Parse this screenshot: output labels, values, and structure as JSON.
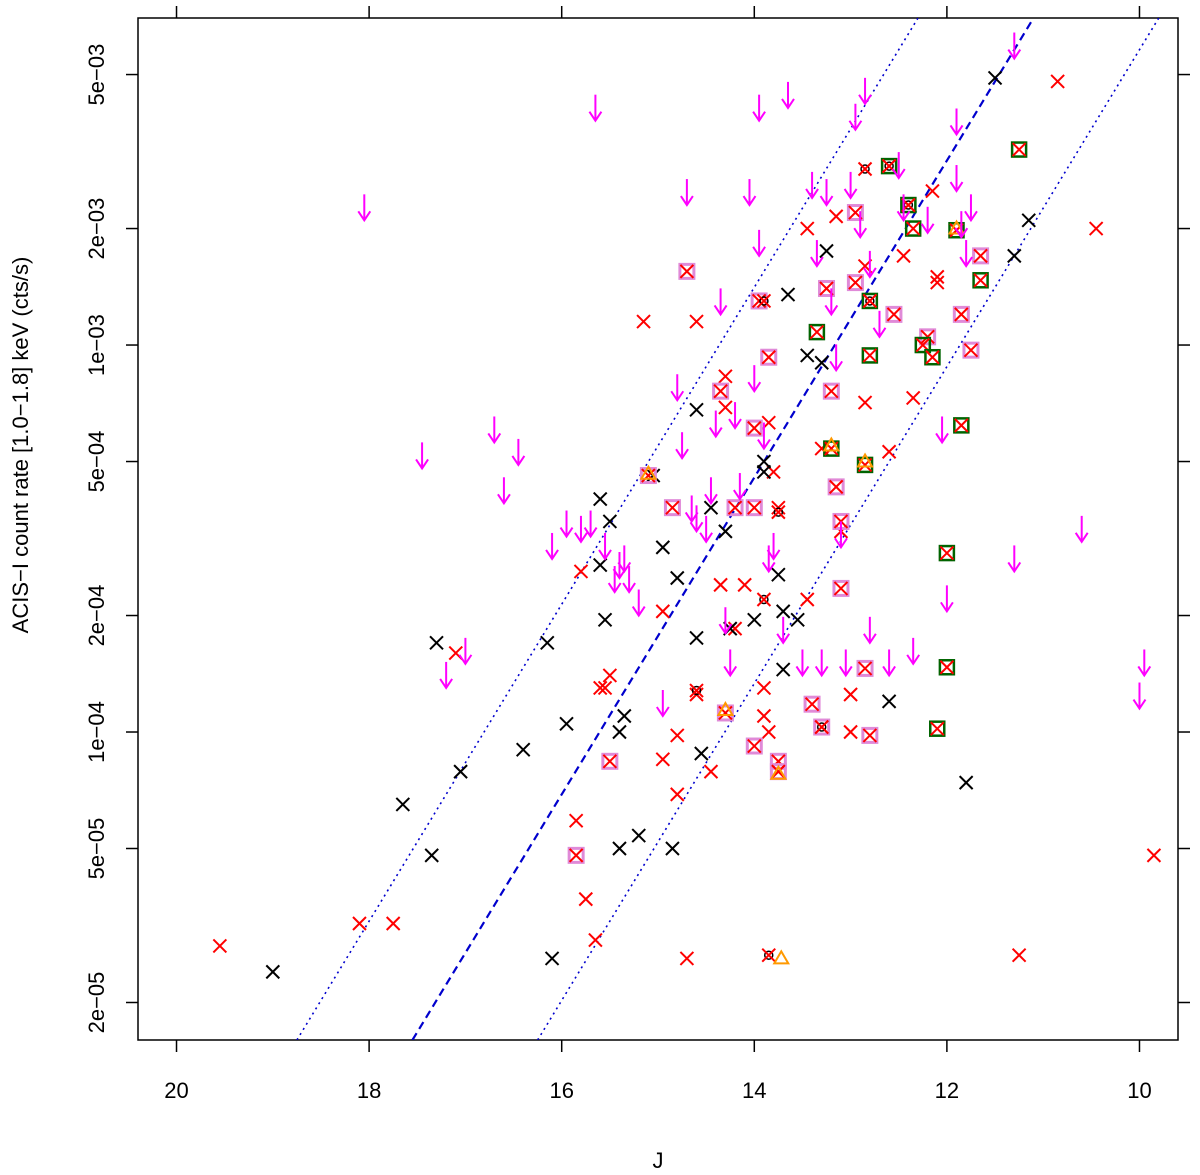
{
  "chart_data": {
    "type": "scatter",
    "title": "",
    "xlabel": "J",
    "ylabel": "ACIS−I count rate [1.0−1.8] keV (cts/s)",
    "x_reversed": true,
    "y_scale": "log",
    "xlim": [
      20.4,
      9.6
    ],
    "ylim": [
      1.6e-05,
      0.007
    ],
    "x_ticks": [
      20,
      18,
      16,
      14,
      12,
      10
    ],
    "x_tick_labels": [
      "20",
      "18",
      "16",
      "14",
      "12",
      "10"
    ],
    "y_ticks": [
      2e-05,
      5e-05,
      0.0001,
      0.0002,
      0.0005,
      0.001,
      0.002,
      0.005
    ],
    "y_tick_labels": [
      "2e−05",
      "5e−05",
      "1e−04",
      "2e−04",
      "5e−04",
      "1e−03",
      "2e−03",
      "5e−03"
    ],
    "grid": false,
    "colors": {
      "red": "#ff0000",
      "black": "#000000",
      "magenta": "#ff00ff",
      "pink_box": "#e08ad8",
      "green_box": "#006400",
      "orange": "#ff9900",
      "blue_line": "#0000cd"
    },
    "reference_lines": [
      {
        "style": "dashed",
        "x": [
          17.55,
          11.1
        ],
        "y": [
          1.6e-05,
          0.007
        ]
      },
      {
        "style": "dotted",
        "x": [
          18.75,
          12.3
        ],
        "y": [
          1.6e-05,
          0.007
        ]
      },
      {
        "style": "dotted",
        "x": [
          16.25,
          9.8
        ],
        "y": [
          1.6e-05,
          0.007
        ]
      }
    ],
    "series": [
      {
        "marker": "x",
        "color": "red",
        "points": [
          [
            19.55,
            2.8e-05
          ],
          [
            18.1,
            3.2e-05
          ],
          [
            17.75,
            3.2e-05
          ],
          [
            17.1,
            0.00016
          ],
          [
            15.8,
            0.00026
          ],
          [
            15.6,
            0.00013
          ],
          [
            15.5,
            0.00014
          ],
          [
            15.15,
            0.00115
          ],
          [
            14.95,
            0.000205
          ],
          [
            14.95,
            8.5e-05
          ],
          [
            14.8,
            9.8e-05
          ],
          [
            14.8,
            6.9e-05
          ],
          [
            14.7,
            2.6e-05
          ],
          [
            14.6,
            0.00115
          ],
          [
            14.6,
            0.000125
          ],
          [
            14.45,
            7.9e-05
          ],
          [
            14.3,
            0.00083
          ],
          [
            14.3,
            0.00069
          ],
          [
            14.35,
            0.00024
          ],
          [
            14.2,
            0.000185
          ],
          [
            14.1,
            0.00024
          ],
          [
            13.9,
            0.00013
          ],
          [
            13.9,
            0.00011
          ],
          [
            13.85,
            0.0001
          ],
          [
            13.85,
            0.00063
          ],
          [
            13.75,
            0.00038
          ],
          [
            13.8,
            0.00047
          ],
          [
            13.45,
            0.002
          ],
          [
            13.45,
            0.00022
          ],
          [
            13.3,
            0.00054
          ],
          [
            13.15,
            0.00215
          ],
          [
            13.1,
            0.00033
          ],
          [
            13.0,
            0.000125
          ],
          [
            13.0,
            0.0001
          ],
          [
            12.85,
            0.0016
          ],
          [
            12.85,
            0.00071
          ],
          [
            12.6,
            0.00053
          ],
          [
            12.45,
            0.0017
          ],
          [
            12.35,
            0.00073
          ],
          [
            12.15,
            0.0025
          ],
          [
            12.1,
            0.0015
          ],
          [
            12.1,
            0.00145
          ],
          [
            11.25,
            2.65e-05
          ],
          [
            10.85,
            0.0048
          ],
          [
            10.45,
            0.002
          ],
          [
            9.85,
            4.8e-05
          ],
          [
            15.85,
            5.9e-05
          ],
          [
            15.75,
            3.7e-05
          ],
          [
            15.65,
            2.9e-05
          ],
          [
            15.55,
            0.00013
          ]
        ]
      },
      {
        "marker": "x",
        "color": "black",
        "points": [
          [
            19.0,
            2.4e-05
          ],
          [
            17.65,
            6.5e-05
          ],
          [
            17.35,
            4.8e-05
          ],
          [
            17.3,
            0.00017
          ],
          [
            17.05,
            7.9e-05
          ],
          [
            16.4,
            9e-05
          ],
          [
            16.15,
            0.00017
          ],
          [
            16.1,
            2.6e-05
          ],
          [
            15.95,
            0.000105
          ],
          [
            15.6,
            0.0004
          ],
          [
            15.6,
            0.00027
          ],
          [
            15.55,
            0.000195
          ],
          [
            15.5,
            0.00035
          ],
          [
            15.4,
            5e-05
          ],
          [
            15.4,
            0.0001
          ],
          [
            15.35,
            0.00011
          ],
          [
            15.2,
            5.4e-05
          ],
          [
            15.05,
            0.00046
          ],
          [
            14.95,
            0.0003
          ],
          [
            14.85,
            5e-05
          ],
          [
            14.8,
            0.00025
          ],
          [
            14.6,
            0.00068
          ],
          [
            14.6,
            0.000175
          ],
          [
            14.55,
            8.8e-05
          ],
          [
            14.45,
            0.00038
          ],
          [
            14.3,
            0.00033
          ],
          [
            14.25,
            0.000185
          ],
          [
            14.0,
            0.000195
          ],
          [
            13.9,
            0.0005
          ],
          [
            13.9,
            0.00047
          ],
          [
            13.75,
            0.000255
          ],
          [
            13.7,
            0.000205
          ],
          [
            13.7,
            0.000145
          ],
          [
            13.65,
            0.00135
          ],
          [
            13.55,
            0.000195
          ],
          [
            13.45,
            0.00094
          ],
          [
            13.3,
            0.0009
          ],
          [
            13.25,
            0.00175
          ],
          [
            12.6,
            0.00012
          ],
          [
            11.8,
            7.4e-05
          ],
          [
            11.3,
            0.0017
          ],
          [
            11.5,
            0.0049
          ],
          [
            11.15,
            0.0021
          ]
        ]
      },
      {
        "marker": "x-pink-box",
        "color": "red",
        "points": [
          [
            15.85,
            4.8e-05
          ],
          [
            15.1,
            0.00046
          ],
          [
            14.85,
            0.00038
          ],
          [
            14.7,
            0.00155
          ],
          [
            14.35,
            0.00076
          ],
          [
            14.3,
            0.000112
          ],
          [
            14.2,
            0.00038
          ],
          [
            14.0,
            0.00061
          ],
          [
            14.0,
            0.00038
          ],
          [
            14.0,
            9.2e-05
          ],
          [
            13.95,
            0.0013
          ],
          [
            13.85,
            0.00093
          ],
          [
            13.75,
            8.4e-05
          ],
          [
            13.75,
            7.9e-05
          ],
          [
            13.4,
            0.000118
          ],
          [
            13.3,
            0.000103
          ],
          [
            13.25,
            0.0014
          ],
          [
            13.2,
            0.00076
          ],
          [
            13.15,
            0.00043
          ],
          [
            13.1,
            0.000235
          ],
          [
            12.95,
            0.0022
          ],
          [
            12.95,
            0.00145
          ],
          [
            12.85,
            0.000146
          ],
          [
            12.8,
            9.8e-05
          ],
          [
            12.55,
            0.0012
          ],
          [
            12.2,
            0.00105
          ],
          [
            11.85,
            0.0012
          ],
          [
            11.75,
            0.00097
          ],
          [
            11.65,
            0.0017
          ],
          [
            15.5,
            8.4e-05
          ],
          [
            13.1,
            0.00035
          ]
        ]
      },
      {
        "marker": "x-green-box",
        "color": "red",
        "points": [
          [
            13.35,
            0.00108
          ],
          [
            13.2,
            0.00054
          ],
          [
            12.85,
            0.00049
          ],
          [
            12.8,
            0.00094
          ],
          [
            12.8,
            0.0013
          ],
          [
            12.6,
            0.0029
          ],
          [
            12.4,
            0.0023
          ],
          [
            12.35,
            0.002
          ],
          [
            12.25,
            0.001
          ],
          [
            12.15,
            0.00093
          ],
          [
            12.1,
            0.000102
          ],
          [
            12.0,
            0.00029
          ],
          [
            12.0,
            0.000147
          ],
          [
            11.85,
            0.00062
          ],
          [
            11.65,
            0.00147
          ],
          [
            11.25,
            0.0032
          ],
          [
            11.9,
            0.00198
          ]
        ]
      },
      {
        "marker": "x-ring",
        "color": "red",
        "points": [
          [
            14.6,
            0.000128
          ],
          [
            13.9,
            0.0013
          ],
          [
            13.85,
            2.65e-05
          ],
          [
            13.75,
            0.00037
          ],
          [
            13.3,
            0.000103
          ],
          [
            12.85,
            0.00285
          ],
          [
            12.6,
            0.0029
          ],
          [
            12.4,
            0.0023
          ],
          [
            13.9,
            0.00022
          ],
          [
            12.8,
            0.0013
          ]
        ]
      },
      {
        "marker": "triangle",
        "color": "orange",
        "points": [
          [
            15.1,
            0.000465
          ],
          [
            14.3,
            0.000114
          ],
          [
            13.75,
            7.8e-05
          ],
          [
            13.72,
            2.6e-05
          ],
          [
            13.2,
            0.00055
          ],
          [
            12.85,
            0.0005
          ],
          [
            11.9,
            0.002
          ]
        ]
      },
      {
        "marker": "arrow-down",
        "color": "magenta",
        "points": [
          [
            18.05,
            0.0021
          ],
          [
            17.45,
            0.00048
          ],
          [
            17.2,
            0.00013
          ],
          [
            17.0,
            0.00015
          ],
          [
            16.7,
            0.00056
          ],
          [
            16.6,
            0.00039
          ],
          [
            16.45,
            0.00049
          ],
          [
            16.1,
            0.00028
          ],
          [
            15.95,
            0.00032
          ],
          [
            15.8,
            0.00031
          ],
          [
            15.7,
            0.00032
          ],
          [
            15.65,
            0.0038
          ],
          [
            15.55,
            0.00028
          ],
          [
            15.45,
            0.00023
          ],
          [
            15.4,
            0.00025
          ],
          [
            15.35,
            0.00026
          ],
          [
            15.3,
            0.00023
          ],
          [
            15.2,
            0.0002
          ],
          [
            14.95,
            0.00011
          ],
          [
            14.8,
            0.00072
          ],
          [
            14.75,
            0.00051
          ],
          [
            14.7,
            0.0023
          ],
          [
            14.65,
            0.00035
          ],
          [
            14.6,
            0.00033
          ],
          [
            14.5,
            0.00031
          ],
          [
            14.45,
            0.00039
          ],
          [
            14.4,
            0.00058
          ],
          [
            14.35,
            0.0012
          ],
          [
            14.3,
            0.00018
          ],
          [
            14.25,
            0.00014
          ],
          [
            14.2,
            0.00061
          ],
          [
            14.15,
            0.0004
          ],
          [
            14.05,
            0.0023
          ],
          [
            14.0,
            0.00076
          ],
          [
            13.95,
            0.0017
          ],
          [
            13.95,
            0.0038
          ],
          [
            13.9,
            0.00054
          ],
          [
            13.85,
            0.00026
          ],
          [
            13.8,
            0.00028
          ],
          [
            13.7,
            0.00017
          ],
          [
            13.65,
            0.0041
          ],
          [
            13.5,
            0.00014
          ],
          [
            13.4,
            0.0024
          ],
          [
            13.35,
            0.0016
          ],
          [
            13.3,
            0.00014
          ],
          [
            13.25,
            0.0023
          ],
          [
            13.2,
            0.0012
          ],
          [
            13.15,
            0.00086
          ],
          [
            13.1,
            0.0003
          ],
          [
            13.05,
            0.00014
          ],
          [
            13.0,
            0.0024
          ],
          [
            12.95,
            0.0036
          ],
          [
            12.9,
            0.0019
          ],
          [
            12.85,
            0.0042
          ],
          [
            12.8,
            0.0015
          ],
          [
            12.8,
            0.00017
          ],
          [
            12.7,
            0.00105
          ],
          [
            12.6,
            0.00014
          ],
          [
            12.5,
            0.0027
          ],
          [
            12.45,
            0.0021
          ],
          [
            12.35,
            0.00015
          ],
          [
            12.2,
            0.00195
          ],
          [
            12.05,
            0.00056
          ],
          [
            12.0,
            0.000205
          ],
          [
            11.9,
            0.0035
          ],
          [
            11.9,
            0.0025
          ],
          [
            11.85,
            0.0019
          ],
          [
            11.8,
            0.0016
          ],
          [
            11.75,
            0.0021
          ],
          [
            11.3,
            0.00026
          ],
          [
            11.3,
            0.0055
          ],
          [
            10.6,
            0.00031
          ],
          [
            10.0,
            0.000115
          ],
          [
            9.95,
            0.00014
          ]
        ]
      }
    ]
  }
}
